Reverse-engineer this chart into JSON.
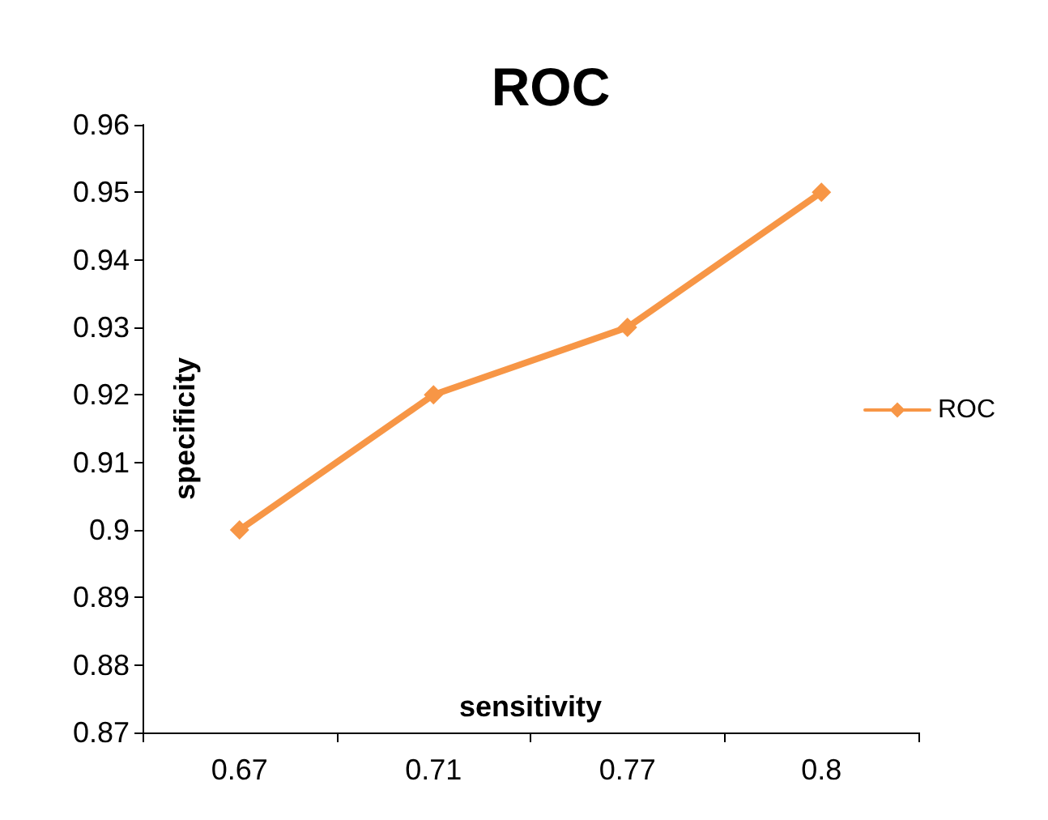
{
  "chart_data": {
    "type": "line",
    "title": "ROC",
    "xlabel": "sensitivity",
    "ylabel": "specificity",
    "categories": [
      "0.67",
      "0.71",
      "0.77",
      "0.8"
    ],
    "series": [
      {
        "name": "ROC",
        "color": "#f79646",
        "values": [
          0.9,
          0.92,
          0.93,
          0.95
        ]
      }
    ],
    "ylim": [
      0.87,
      0.96
    ],
    "yticks": [
      0.87,
      0.88,
      0.89,
      0.9,
      0.91,
      0.92,
      0.93,
      0.94,
      0.95,
      0.96
    ],
    "grid": false,
    "legend": "right",
    "marker": "diamond",
    "line_style": "solid"
  }
}
